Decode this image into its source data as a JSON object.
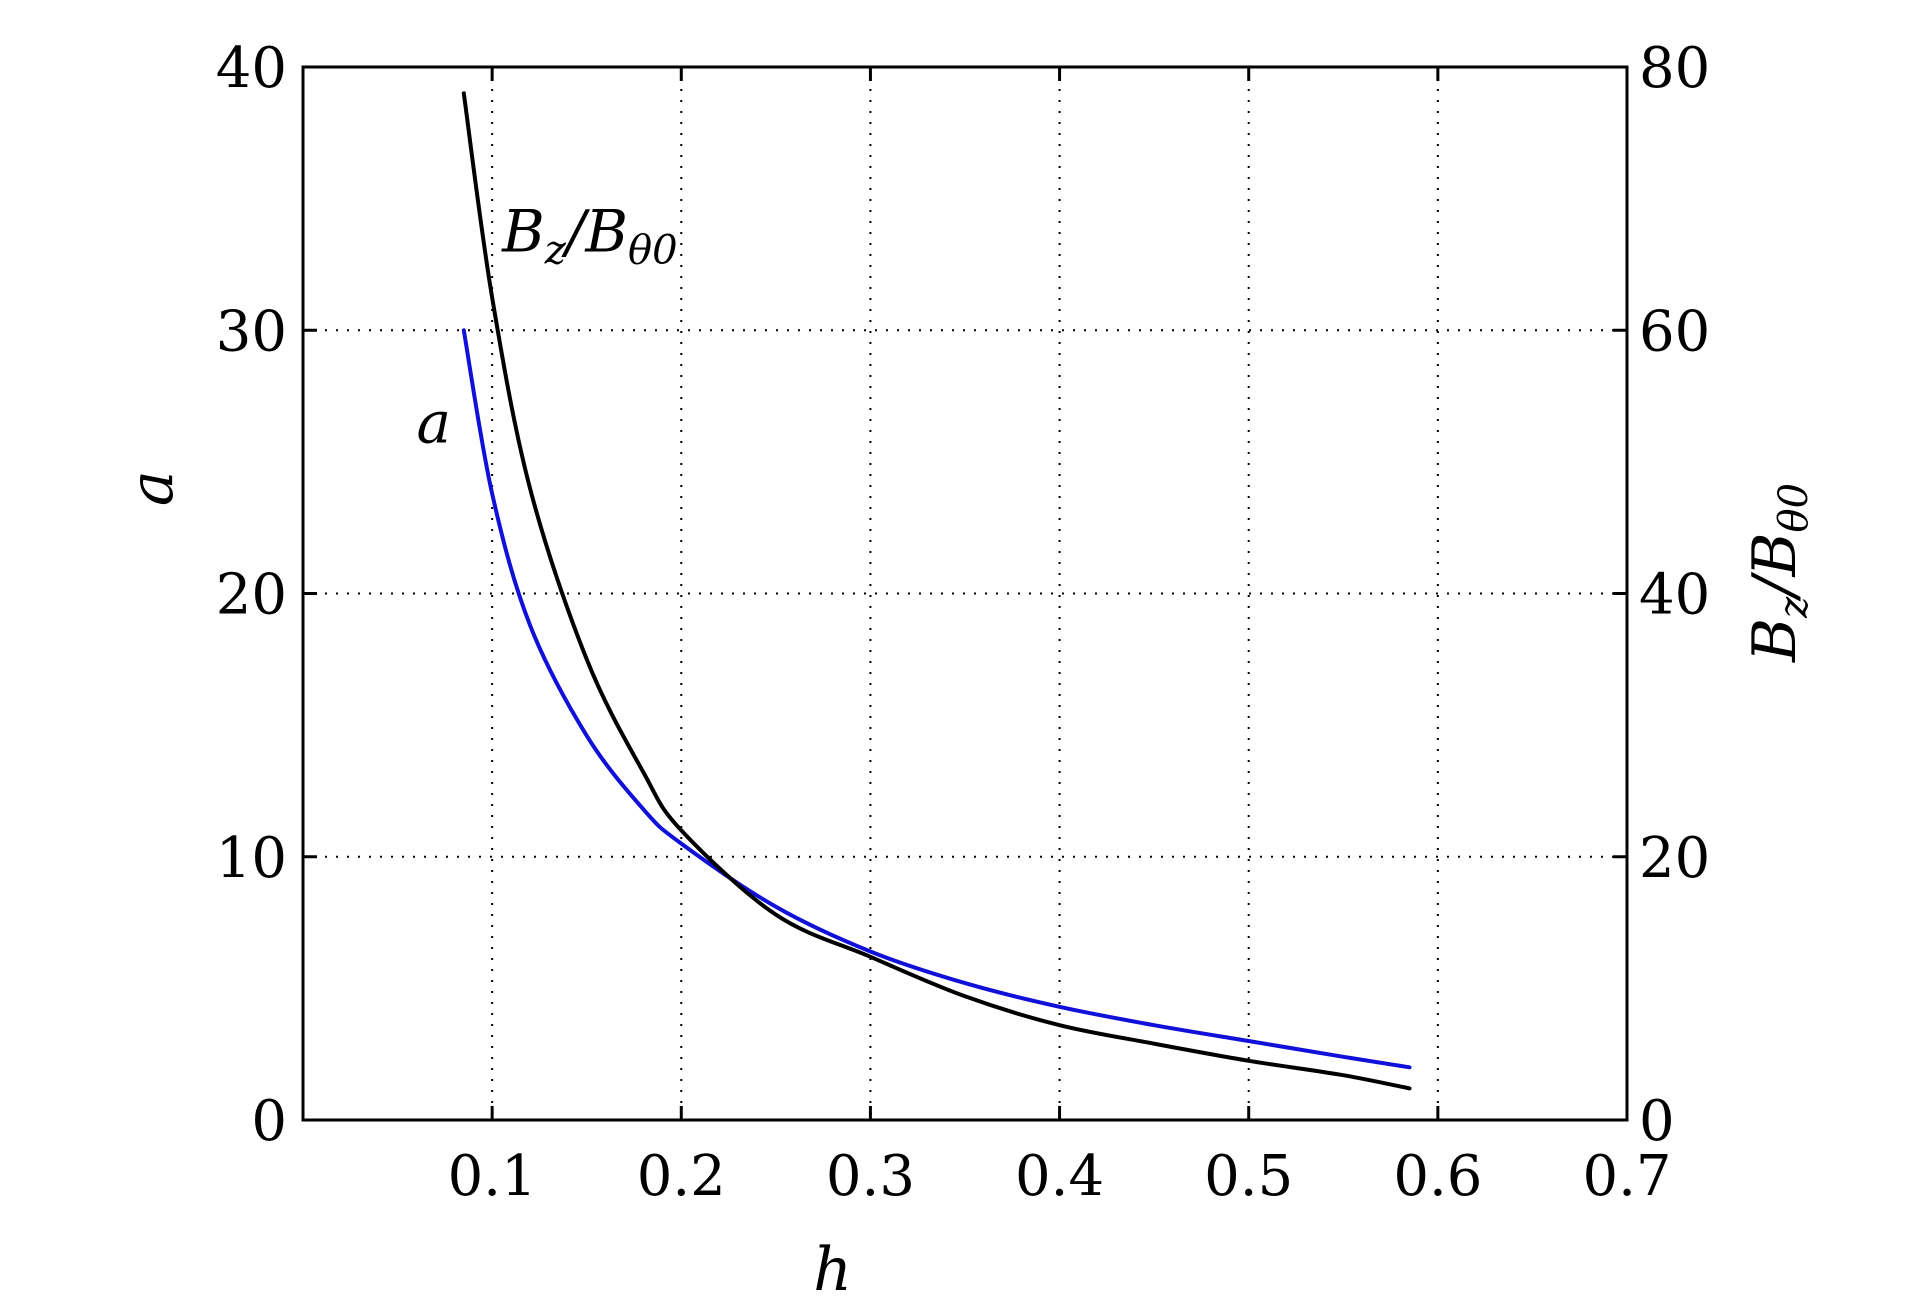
{
  "chart_data": {
    "type": "line",
    "title": "",
    "xlabel": "h",
    "ylabel_left": "a",
    "ylabel_right": "B_z/B_θ0",
    "xlim": [
      0,
      0.7
    ],
    "ylim_left": [
      0,
      40
    ],
    "ylim_right": [
      0,
      80
    ],
    "x_ticks": [
      "0.1",
      "0.2",
      "0.3",
      "0.4",
      "0.5",
      "0.6",
      "0.7"
    ],
    "y_left_ticks": [
      "0",
      "10",
      "20",
      "30",
      "40"
    ],
    "y_right_ticks": [
      "0",
      "20",
      "40",
      "60",
      "80"
    ],
    "grid": true,
    "series": [
      {
        "name": "a",
        "axis": "left",
        "color": "#1010d8",
        "x": [
          0.085,
          0.1,
          0.12,
          0.15,
          0.18,
          0.2,
          0.25,
          0.3,
          0.35,
          0.4,
          0.45,
          0.5,
          0.55,
          0.585
        ],
        "y": [
          30.0,
          23.8,
          18.8,
          14.6,
          11.8,
          10.5,
          8.1,
          6.4,
          5.2,
          4.3,
          3.6,
          3.0,
          2.4,
          2.0
        ]
      },
      {
        "name": "B_z/B_θ0",
        "axis": "right",
        "color": "#000000",
        "x": [
          0.085,
          0.1,
          0.12,
          0.15,
          0.18,
          0.2,
          0.25,
          0.3,
          0.35,
          0.4,
          0.45,
          0.5,
          0.55,
          0.585
        ],
        "y": [
          78.0,
          62.5,
          48.0,
          35.0,
          26.4,
          22.0,
          15.6,
          12.4,
          9.4,
          7.2,
          5.8,
          4.5,
          3.4,
          2.4
        ]
      }
    ],
    "annotations": [
      {
        "text_main": "B",
        "text_sub": "z",
        "text_mid": "/B",
        "text_sub2": "θ0",
        "x": 0.1,
        "y_right": 66
      },
      {
        "text": "a",
        "x": 0.06,
        "y_left": 26.5
      }
    ]
  }
}
